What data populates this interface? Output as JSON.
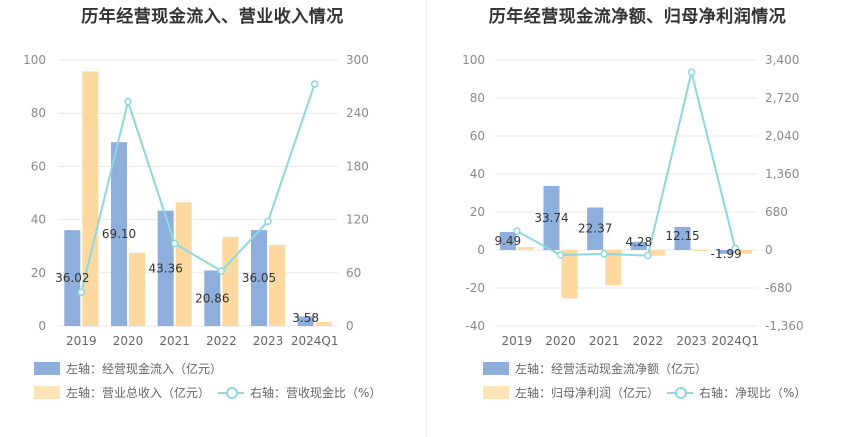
{
  "colors": {
    "blue": "#8eaedc",
    "orange": "#fdd9a0",
    "cyan": "#8dd8de",
    "grid": "#e6e9ef"
  },
  "chart_data": [
    {
      "type": "bar",
      "title": "历年经营现金流入、营业收入情况",
      "categories": [
        "2019",
        "2020",
        "2021",
        "2022",
        "2023",
        "2024Q1"
      ],
      "left_axis": {
        "min": 0,
        "max": 100,
        "ticks": [
          "0",
          "20",
          "40",
          "60",
          "80",
          "100"
        ]
      },
      "right_axis": {
        "min": 0,
        "max": 300,
        "ticks": [
          "0",
          "60",
          "120",
          "180",
          "240",
          "300"
        ]
      },
      "series": [
        {
          "name": "左轴：经营现金流入（亿元）",
          "type": "bar",
          "axis": "left",
          "values": [
            36.02,
            69.1,
            43.36,
            20.86,
            36.05,
            3.58
          ],
          "labels": [
            "36.02",
            "69.10",
            "43.36",
            "20.86",
            "36.05",
            "3.58"
          ]
        },
        {
          "name": "左轴：营业总收入（亿元）",
          "type": "bar",
          "axis": "left",
          "values": [
            95.7,
            27.5,
            46.5,
            33.5,
            30.5,
            1.5
          ]
        },
        {
          "name": "右轴：营收现金比（%）",
          "type": "line",
          "axis": "right",
          "values": [
            38,
            253,
            93,
            62,
            118,
            273
          ]
        }
      ]
    },
    {
      "type": "bar",
      "title": "历年经营现金流净额、归母净利润情况",
      "categories": [
        "2019",
        "2020",
        "2021",
        "2022",
        "2023",
        "2024Q1"
      ],
      "left_axis": {
        "min": -40,
        "max": 100,
        "ticks": [
          "-40",
          "-20",
          "0",
          "20",
          "40",
          "60",
          "80",
          "100"
        ]
      },
      "right_axis": {
        "min": -1360,
        "max": 3400,
        "ticks": [
          "-1,360",
          "-680",
          "0",
          "680",
          "1,360",
          "2,040",
          "2,720",
          "3,400"
        ]
      },
      "series": [
        {
          "name": "左轴：经营活动现金流净额（亿元）",
          "type": "bar",
          "axis": "left",
          "values": [
            9.49,
            33.74,
            22.37,
            4.28,
            12.15,
            -1.99
          ],
          "labels": [
            "9.49",
            "33.74",
            "22.37",
            "4.28",
            "12.15",
            "-1.99"
          ]
        },
        {
          "name": "左轴：归母净利润（亿元）",
          "type": "bar",
          "axis": "left",
          "values": [
            1.5,
            -25.5,
            -18.5,
            -3.0,
            -0.6,
            -2.0
          ]
        },
        {
          "name": "右轴：净现比（%）",
          "type": "line",
          "axis": "right",
          "values": [
            340,
            -90,
            -70,
            -100,
            3180,
            30
          ]
        }
      ]
    }
  ]
}
